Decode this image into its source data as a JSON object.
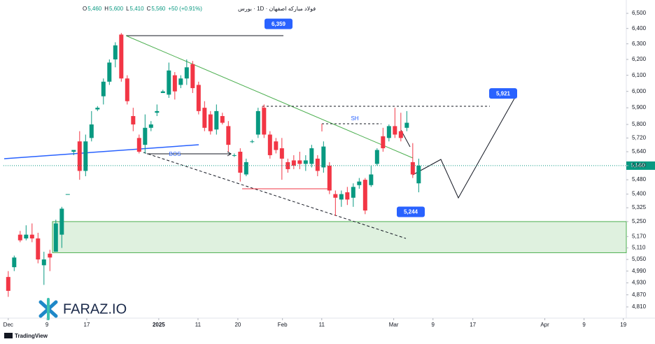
{
  "chart_data": {
    "type": "candlestick",
    "title": "فولاد مبارکه اصفهان · 1D · بورس",
    "ohlc_legend": [
      {
        "key": "O",
        "value": 5460,
        "label": "5,460"
      },
      {
        "key": "H",
        "value": 5600,
        "label": "5,600"
      },
      {
        "key": "L",
        "value": 5410,
        "label": "5,410"
      },
      {
        "key": "C",
        "value": 5560,
        "label": "5,560"
      }
    ],
    "change": "+50 (+0.91%)",
    "open": [
      4960,
      5010,
      5180,
      5160,
      5180,
      5160,
      5020,
      5080,
      5090,
      5180,
      5400,
      5640,
      5700,
      5530,
      5720,
      5890,
      5970,
      6060,
      6200,
      6360,
      6080,
      5850,
      5720,
      5680,
      5780,
      5870,
      5990,
      5980,
      6100,
      6040,
      6080,
      6170,
      6040,
      5900,
      5860,
      5770,
      5850,
      5790,
      5620,
      5640,
      5510,
      5700,
      5740,
      5900,
      5740,
      5700,
      5660,
      5580,
      5590,
      5590,
      5570,
      5570,
      5600,
      5550,
      5560,
      5400,
      5370,
      5410,
      5380,
      5450,
      5480,
      5450,
      5570,
      5730,
      5720,
      5790,
      5760,
      5780,
      5580,
      5460
    ],
    "high": [
      4990,
      5070,
      5200,
      5230,
      5240,
      5190,
      5090,
      5100,
      5260,
      5330,
      5400,
      5650,
      5760,
      5740,
      5880,
      5910,
      6080,
      6200,
      6310,
      6370,
      6100,
      5900,
      5740,
      5860,
      5820,
      5920,
      6010,
      6180,
      6120,
      6100,
      6200,
      6190,
      6060,
      5940,
      5880,
      5920,
      5870,
      5820,
      5630,
      5660,
      5600,
      5710,
      5900,
      5920,
      5760,
      5720,
      5720,
      5600,
      5620,
      5640,
      5620,
      5680,
      5620,
      5700,
      5580,
      5420,
      5420,
      5440,
      5460,
      5490,
      5490,
      5560,
      5660,
      5780,
      5800,
      5900,
      5870,
      5880,
      5690,
      5600
    ],
    "low": [
      4860,
      4990,
      5140,
      5150,
      5140,
      5030,
      4920,
      4990,
      5090,
      5110,
      5400,
      5620,
      5480,
      5500,
      5700,
      5880,
      5920,
      6040,
      6150,
      6060,
      5920,
      5760,
      5630,
      5630,
      5760,
      5850,
      5990,
      5960,
      5950,
      6020,
      6040,
      5990,
      5860,
      5760,
      5740,
      5740,
      5800,
      5640,
      5610,
      5470,
      5500,
      5690,
      5720,
      5720,
      5600,
      5630,
      5480,
      5520,
      5540,
      5540,
      5530,
      5550,
      5500,
      5520,
      5400,
      5280,
      5330,
      5340,
      5330,
      5430,
      5290,
      5440,
      5560,
      5640,
      5700,
      5720,
      5700,
      5760,
      5490,
      5410
    ],
    "close": [
      4890,
      5060,
      5150,
      5180,
      5160,
      5050,
      5050,
      5060,
      5240,
      5320,
      5400,
      5650,
      5530,
      5700,
      5800,
      5900,
      6060,
      6180,
      6290,
      6080,
      5940,
      5800,
      5640,
      5780,
      5800,
      5880,
      6000,
      6130,
      6000,
      6080,
      6150,
      6020,
      5880,
      5780,
      5760,
      5880,
      5810,
      5680,
      5620,
      5520,
      5580,
      5700,
      5880,
      5740,
      5620,
      5650,
      5600,
      5540,
      5560,
      5570,
      5590,
      5660,
      5530,
      5670,
      5420,
      5380,
      5400,
      5370,
      5440,
      5470,
      5310,
      5510,
      5650,
      5660,
      5790,
      5740,
      5720,
      5810,
      5510,
      5560
    ],
    "up_color": "#089981",
    "down_color": "#f23645",
    "log_scale": true,
    "ylim": [
      4755,
      6566
    ],
    "yticks": [
      {
        "value": 6500,
        "label": "6,500"
      },
      {
        "value": 6400,
        "label": "6,400"
      },
      {
        "value": 6300,
        "label": "6,300"
      },
      {
        "value": 6200,
        "label": "6,200"
      },
      {
        "value": 6100,
        "label": "6,100"
      },
      {
        "value": 6000,
        "label": "6,000"
      },
      {
        "value": 5900,
        "label": "5,900"
      },
      {
        "value": 5800,
        "label": "5,800"
      },
      {
        "value": 5720,
        "label": "5,720"
      },
      {
        "value": 5640,
        "label": "5,640"
      },
      {
        "value": 5560,
        "label": "5,560"
      },
      {
        "value": 5480,
        "label": "5,480"
      },
      {
        "value": 5400,
        "label": "5,400"
      },
      {
        "value": 5325,
        "label": "5,325"
      },
      {
        "value": 5250,
        "label": "5,250"
      },
      {
        "value": 5170,
        "label": "5,170"
      },
      {
        "value": 5110,
        "label": "5,110"
      },
      {
        "value": 5050,
        "label": "5,050"
      },
      {
        "value": 4990,
        "label": "4,990"
      },
      {
        "value": 4930,
        "label": "4,930"
      },
      {
        "value": 4870,
        "label": "4,870"
      },
      {
        "value": 4810,
        "label": "4,810"
      }
    ],
    "xlim": [
      -0.8,
      103.9
    ],
    "xticks": [
      {
        "value": 0,
        "label": "Dec"
      },
      {
        "value": 6.5,
        "label": "9"
      },
      {
        "value": 13.2,
        "label": "17"
      },
      {
        "value": 25.3,
        "label": "2025"
      },
      {
        "value": 31.9,
        "label": "11"
      },
      {
        "value": 38.6,
        "label": "20"
      },
      {
        "value": 46.1,
        "label": "Feb"
      },
      {
        "value": 52.7,
        "label": "11"
      },
      {
        "value": 64.8,
        "label": "Mar"
      },
      {
        "value": 71.4,
        "label": "9"
      },
      {
        "value": 78.1,
        "label": "17"
      },
      {
        "value": 90.2,
        "label": "Apr"
      },
      {
        "value": 96.8,
        "label": "9"
      },
      {
        "value": 103.4,
        "label": "19"
      }
    ],
    "last_price": {
      "value": 5560,
      "label": "5,560"
    },
    "annotations": [
      {
        "value": 6359,
        "label": "6,359"
      },
      {
        "value": 5921,
        "label": "5,921"
      },
      {
        "value": 5244,
        "label": "5,244"
      }
    ],
    "zone": [
      5085,
      5250
    ],
    "bos_label": "BOS",
    "sh_label": "SH",
    "logo": "FARAZ.IO",
    "footer": "TradingView"
  }
}
